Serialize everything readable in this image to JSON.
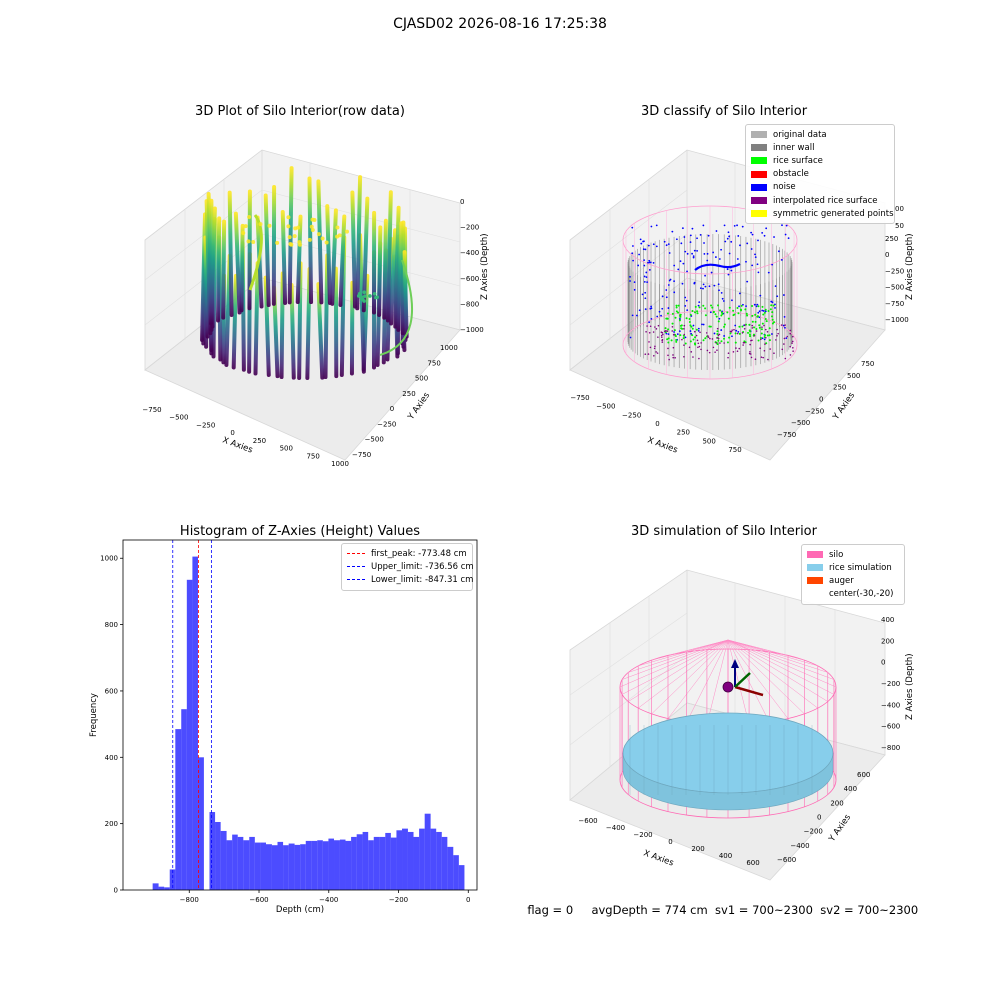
{
  "suptitle": "CJASD02 2026-08-16 17:25:38",
  "panels": {
    "raw": {
      "title": "3D Plot of Silo Interior(row data)",
      "xlabel": "X Axies",
      "ylabel": "Y Axies",
      "zlabel": "Z Axies (Depth)",
      "xticks": [
        "−750",
        "−500",
        "−250",
        "0",
        "250",
        "500",
        "750",
        "1000"
      ],
      "yticks": [
        "−750",
        "−500",
        "−250",
        "0",
        "250",
        "500",
        "750",
        "1000"
      ],
      "zticks": [
        "0",
        "−200",
        "−400",
        "−600",
        "−800",
        "−1000"
      ]
    },
    "classify": {
      "title": "3D classify of Silo Interior",
      "xlabel": "X Axies",
      "ylabel": "Y Axies",
      "zlabel": "Z Axies (Depth)",
      "xticks": [
        "−750",
        "−500",
        "−250",
        "0",
        "250",
        "500",
        "750"
      ],
      "yticks": [
        "−750",
        "−500",
        "−250",
        "0",
        "250",
        "500",
        "750"
      ],
      "zticks": [
        "250",
        "0",
        "−250",
        "−500",
        "−750",
        "−1000"
      ],
      "zticks_partial": [
        "00",
        "50"
      ],
      "legend": [
        {
          "label": "original data",
          "color": "#b0b0b0"
        },
        {
          "label": "inner wall",
          "color": "#808080"
        },
        {
          "label": "rice surface",
          "color": "#00ff00"
        },
        {
          "label": "obstacle",
          "color": "#ff0000"
        },
        {
          "label": "noise",
          "color": "#0000ff"
        },
        {
          "label": "interpolated rice surface",
          "color": "#800080"
        },
        {
          "label": "symmetric generated points",
          "color": "#ffff00"
        }
      ]
    },
    "simulation": {
      "title": "3D simulation of Silo Interior",
      "xlabel": "X Axies",
      "ylabel": "Y Axies",
      "zlabel": "Z Axies (Depth)",
      "xticks": [
        "−600",
        "−400",
        "−200",
        "0",
        "200",
        "400",
        "600"
      ],
      "yticks": [
        "−600",
        "−400",
        "−200",
        "0",
        "200",
        "400",
        "600"
      ],
      "zticks": [
        "400",
        "200",
        "0",
        "−200",
        "−400",
        "−600",
        "−800"
      ],
      "legend": [
        {
          "label": "silo",
          "color": "#ff69b4"
        },
        {
          "label": "rice simulation",
          "color": "#87ceeb"
        },
        {
          "label": "auger",
          "color": "#ff4500"
        },
        {
          "label": "center(-30,-20)",
          "color": ""
        }
      ]
    }
  },
  "status": {
    "flag": "flag = 0",
    "avg": "avgDepth = 774 cm",
    "sv1": "sv1 = 700~2300",
    "sv2": "sv2 = 700~2300"
  },
  "chart_data": [
    {
      "type": "bar",
      "title": "Histogram of Z-Axies (Height) Values",
      "xlabel": "Depth (cm)",
      "ylabel": "Frequency",
      "bar_color": "#0000ff",
      "xlim": [
        -990,
        25
      ],
      "ylim": [
        0,
        1055
      ],
      "xticks": [
        -800,
        -600,
        -400,
        -200,
        0
      ],
      "yticks": [
        0,
        200,
        400,
        600,
        800,
        1000
      ],
      "bins": [
        {
          "x0": -905,
          "x1": -888,
          "count": 20
        },
        {
          "x0": -888,
          "x1": -872,
          "count": 10
        },
        {
          "x0": -872,
          "x1": -856,
          "count": 8
        },
        {
          "x0": -856,
          "x1": -840,
          "count": 62
        },
        {
          "x0": -840,
          "x1": -823,
          "count": 485
        },
        {
          "x0": -823,
          "x1": -807,
          "count": 545
        },
        {
          "x0": -807,
          "x1": -791,
          "count": 935
        },
        {
          "x0": -791,
          "x1": -775,
          "count": 1005
        },
        {
          "x0": -775,
          "x1": -758,
          "count": 400
        },
        {
          "x0": -758,
          "x1": -742,
          "count": 0
        },
        {
          "x0": -742,
          "x1": -726,
          "count": 235
        },
        {
          "x0": -726,
          "x1": -710,
          "count": 205
        },
        {
          "x0": -710,
          "x1": -693,
          "count": 178
        },
        {
          "x0": -693,
          "x1": -677,
          "count": 150
        },
        {
          "x0": -677,
          "x1": -661,
          "count": 167
        },
        {
          "x0": -661,
          "x1": -645,
          "count": 160
        },
        {
          "x0": -645,
          "x1": -628,
          "count": 150
        },
        {
          "x0": -628,
          "x1": -612,
          "count": 160
        },
        {
          "x0": -612,
          "x1": -596,
          "count": 143
        },
        {
          "x0": -596,
          "x1": -580,
          "count": 143
        },
        {
          "x0": -580,
          "x1": -563,
          "count": 138
        },
        {
          "x0": -563,
          "x1": -547,
          "count": 135
        },
        {
          "x0": -547,
          "x1": -531,
          "count": 145
        },
        {
          "x0": -531,
          "x1": -515,
          "count": 135
        },
        {
          "x0": -515,
          "x1": -498,
          "count": 140
        },
        {
          "x0": -498,
          "x1": -482,
          "count": 136
        },
        {
          "x0": -482,
          "x1": -466,
          "count": 138
        },
        {
          "x0": -466,
          "x1": -450,
          "count": 148
        },
        {
          "x0": -450,
          "x1": -433,
          "count": 148
        },
        {
          "x0": -433,
          "x1": -417,
          "count": 150
        },
        {
          "x0": -417,
          "x1": -401,
          "count": 147
        },
        {
          "x0": -401,
          "x1": -385,
          "count": 155
        },
        {
          "x0": -385,
          "x1": -368,
          "count": 150
        },
        {
          "x0": -368,
          "x1": -352,
          "count": 152
        },
        {
          "x0": -352,
          "x1": -336,
          "count": 148
        },
        {
          "x0": -336,
          "x1": -320,
          "count": 160
        },
        {
          "x0": -320,
          "x1": -303,
          "count": 168
        },
        {
          "x0": -303,
          "x1": -287,
          "count": 175
        },
        {
          "x0": -287,
          "x1": -271,
          "count": 150
        },
        {
          "x0": -271,
          "x1": -255,
          "count": 160
        },
        {
          "x0": -255,
          "x1": -238,
          "count": 160
        },
        {
          "x0": -238,
          "x1": -222,
          "count": 172
        },
        {
          "x0": -222,
          "x1": -206,
          "count": 158
        },
        {
          "x0": -206,
          "x1": -190,
          "count": 180
        },
        {
          "x0": -190,
          "x1": -173,
          "count": 185
        },
        {
          "x0": -173,
          "x1": -157,
          "count": 175
        },
        {
          "x0": -157,
          "x1": -141,
          "count": 160
        },
        {
          "x0": -141,
          "x1": -125,
          "count": 185
        },
        {
          "x0": -125,
          "x1": -108,
          "count": 230
        },
        {
          "x0": -108,
          "x1": -92,
          "count": 185
        },
        {
          "x0": -92,
          "x1": -76,
          "count": 175
        },
        {
          "x0": -76,
          "x1": -60,
          "count": 160
        },
        {
          "x0": -60,
          "x1": -43,
          "count": 130
        },
        {
          "x0": -43,
          "x1": -27,
          "count": 105
        },
        {
          "x0": -27,
          "x1": -11,
          "count": 75
        }
      ],
      "vlines": [
        {
          "x": -773.48,
          "color": "#ff0000",
          "label": "first_peak: -773.48 cm"
        },
        {
          "x": -736.56,
          "color": "#0000ff",
          "label": "Upper_limit: -736.56 cm"
        },
        {
          "x": -847.31,
          "color": "#0000ff",
          "label": "Lower_limit: -847.31 cm"
        }
      ]
    }
  ]
}
